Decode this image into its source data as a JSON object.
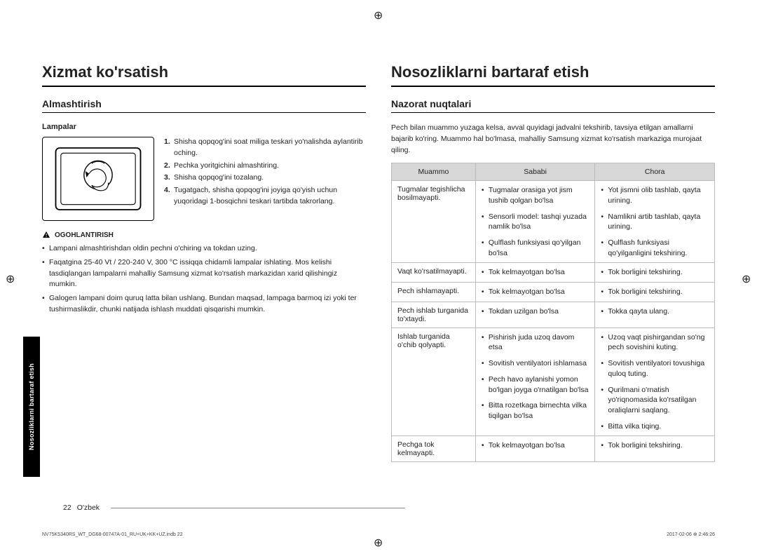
{
  "crop_glyph": "⊕",
  "left": {
    "h1": "Xizmat ko'rsatish",
    "h2": "Almashtirish",
    "sub": "Lampalar",
    "steps": [
      "Shisha qopqog'ini soat miliga teskari yo'nalishda aylantirib oching.",
      "Pechka yoritgichini almashtiring.",
      "Shisha qopqog'ini tozalang.",
      "Tugatgach, shisha qopqog'ini joyiga qo'yish uchun yuqoridagi 1-bosqichni teskari tartibda takrorlang."
    ],
    "warn_label": "OGOHLANTIRISH",
    "warn_bullets": [
      "Lampani almashtirishdan oldin pechni o'chiring va tokdan uzing.",
      "Faqatgina 25-40 Vt / 220-240 V, 300 °C issiqqa chidamli lampalar ishlating. Mos kelishi tasdiqlangan lampalarni mahalliy Samsung xizmat ko'rsatish markazidan xarid qilishingiz mumkin.",
      "Galogen lampani doim quruq latta bilan ushlang. Bundan maqsad, lampaga barmoq izi yoki ter tushirmaslikdir, chunki natijada ishlash muddati qisqarishi mumkin."
    ]
  },
  "right": {
    "h1": "Nosozliklarni bartaraf etish",
    "h2": "Nazorat nuqtalari",
    "intro": "Pech bilan muammo yuzaga kelsa, avval quyidagi jadvalni tekshirib, tavsiya etilgan amallarni bajarib ko'ring. Muammo hal bo'lmasa, mahalliy Samsung xizmat ko'rsatish markaziga murojaat qiling.",
    "th": [
      "Muammo",
      "Sababi",
      "Chora"
    ],
    "rows": [
      {
        "problem": "Tugmalar tegishlicha bosilmayapti.",
        "pairs": [
          [
            "Tugmalar orasiga yot jism tushib qolgan bo'lsa",
            "Yot jismni olib tashlab, qayta urining."
          ],
          [
            "Sensorli model: tashqi yuzada namlik bo'lsa",
            "Namlikni artib tashlab, qayta urining."
          ],
          [
            "Qulflash funksiyasi qo'yilgan bo'lsa",
            "Qulflash funksiyasi qo'yilganligini tekshiring."
          ]
        ]
      },
      {
        "problem": "Vaqt ko'rsatilmayapti.",
        "pairs": [
          [
            "Tok kelmayotgan bo'lsa",
            "Tok borligini tekshiring."
          ]
        ]
      },
      {
        "problem": "Pech ishlamayapti.",
        "pairs": [
          [
            "Tok kelmayotgan bo'lsa",
            "Tok borligini tekshiring."
          ]
        ]
      },
      {
        "problem": "Pech ishlab turganida to'xtaydi.",
        "pairs": [
          [
            "Tokdan uzilgan bo'lsa",
            "Tokka qayta ulang."
          ]
        ]
      },
      {
        "problem": "Ishlab turganida o'chib qolyapti.",
        "pairs": [
          [
            "Pishirish juda uzoq davom etsa",
            "Uzoq vaqt pishirgandan so'ng pech sovishini kuting."
          ],
          [
            "Sovitish ventilyatori ishlamasa",
            "Sovitish ventilyatori tovushiga quloq tuting."
          ],
          [
            "Pech havo aylanishi yomon bo'lgan joyga o'rnatilgan bo'lsa",
            "Qurilmani o'rnatish yo'riqnomasida ko'rsatilgan oraliqlarni saqlang."
          ],
          [
            "Bitta rozetkaga birnechta vilka tiqilgan bo'lsa",
            "Bitta vilka tiqing."
          ]
        ]
      },
      {
        "problem": "Pechga tok kelmayapti.",
        "pairs": [
          [
            "Tok kelmayotgan bo'lsa",
            "Tok borligini tekshiring."
          ]
        ]
      }
    ]
  },
  "side_tab": "Nosozliklarni bartaraf etish",
  "footer_page": "22",
  "footer_lang": "O'zbek",
  "meta_left": "NV75K5340RS_WT_DG68-00747A-01_RU+UK+KK+UZ.indb   22",
  "meta_right": "2017-02-06   ⊕ 2:46:26"
}
